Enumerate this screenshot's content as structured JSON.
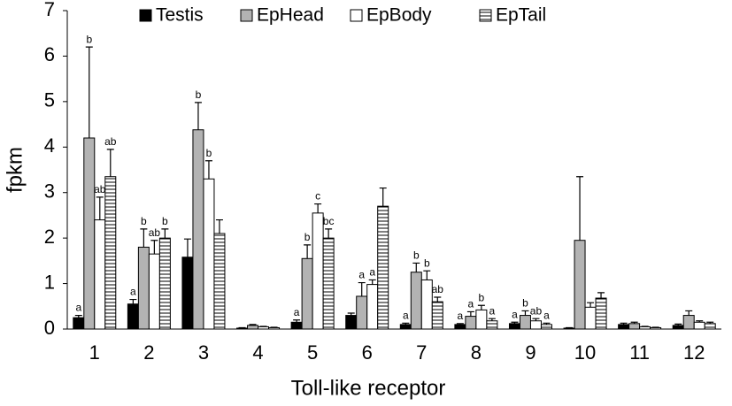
{
  "chart_data": {
    "type": "bar",
    "x_label": "Toll-like receptor",
    "y_label": "fpkm",
    "categories": [
      "1",
      "2",
      "3",
      "4",
      "5",
      "6",
      "7",
      "8",
      "9",
      "10",
      "11",
      "12"
    ],
    "series": [
      {
        "name": "Testis",
        "color": "#000000",
        "values": [
          0.25,
          0.55,
          1.58,
          0.02,
          0.15,
          0.3,
          0.1,
          0.1,
          0.12,
          0.02,
          0.1,
          0.08
        ],
        "errors": [
          0.05,
          0.1,
          0.4,
          0.01,
          0.05,
          0.05,
          0.03,
          0.02,
          0.03,
          0.01,
          0.03,
          0.03
        ],
        "letters": [
          "a",
          "a",
          null,
          null,
          "a",
          null,
          "a",
          "a",
          "a",
          null,
          null,
          null
        ]
      },
      {
        "name": "EpHead",
        "color": "#b3b3b3",
        "values": [
          4.2,
          1.8,
          4.38,
          0.08,
          1.55,
          0.72,
          1.25,
          0.28,
          0.3,
          1.95,
          0.12,
          0.3
        ],
        "errors": [
          2.0,
          0.4,
          0.6,
          0.02,
          0.3,
          0.3,
          0.2,
          0.1,
          0.1,
          1.4,
          0.03,
          0.1
        ],
        "letters": [
          "b",
          "b",
          "b",
          null,
          "b",
          "a",
          "b",
          "a",
          "b",
          null,
          null,
          null
        ]
      },
      {
        "name": "EpBody",
        "color": "#ffffff",
        "values": [
          2.4,
          1.65,
          3.3,
          0.05,
          2.55,
          0.98,
          1.08,
          0.42,
          0.18,
          0.48,
          0.05,
          0.15
        ],
        "errors": [
          0.5,
          0.3,
          0.4,
          0.01,
          0.2,
          0.1,
          0.2,
          0.1,
          0.05,
          0.1,
          0.01,
          0.03
        ],
        "letters": [
          "ab",
          "ab",
          "b",
          null,
          "c",
          "a",
          "b",
          "b",
          "ab",
          null,
          null,
          null
        ]
      },
      {
        "name": "EpTail",
        "color": "#ffffff",
        "pattern": "horizontal-stripes",
        "values": [
          3.35,
          2.0,
          2.1,
          0.03,
          2.0,
          2.7,
          0.6,
          0.18,
          0.1,
          0.68,
          0.03,
          0.12
        ],
        "errors": [
          0.6,
          0.2,
          0.3,
          0.01,
          0.2,
          0.4,
          0.1,
          0.05,
          0.03,
          0.12,
          0.01,
          0.03
        ],
        "letters": [
          "ab",
          "b",
          null,
          null,
          "bc",
          null,
          "ab",
          "a",
          "a",
          null,
          null,
          null
        ]
      }
    ],
    "ylim": [
      0,
      7
    ],
    "yticks": [
      0,
      1,
      2,
      3,
      4,
      5,
      6,
      7
    ],
    "grid": false,
    "legend": "top"
  }
}
